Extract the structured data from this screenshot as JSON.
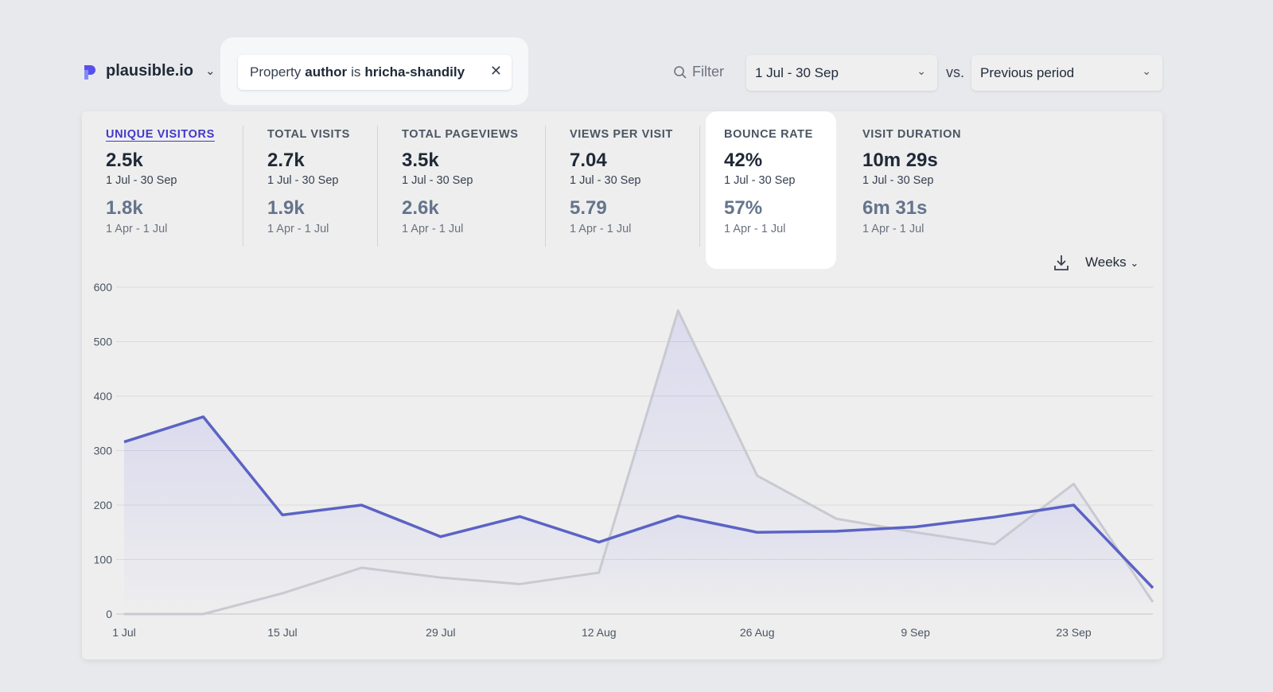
{
  "header": {
    "site": "plausible.io",
    "filter": {
      "prefix": "Property",
      "key": "author",
      "op": "is",
      "value": "hricha-shandily"
    },
    "filter_button": "Filter",
    "date_range": "1 Jul - 30 Sep",
    "vs": "vs.",
    "comparison": "Previous period"
  },
  "stats": [
    {
      "label": "UNIQUE VISITORS",
      "value": "2.5k",
      "period": "1 Jul - 30 Sep",
      "prev_value": "1.8k",
      "prev_period": "1 Apr - 1 Jul"
    },
    {
      "label": "TOTAL VISITS",
      "value": "2.7k",
      "period": "1 Jul - 30 Sep",
      "prev_value": "1.9k",
      "prev_period": "1 Apr - 1 Jul"
    },
    {
      "label": "TOTAL PAGEVIEWS",
      "value": "3.5k",
      "period": "1 Jul - 30 Sep",
      "prev_value": "2.6k",
      "prev_period": "1 Apr - 1 Jul"
    },
    {
      "label": "VIEWS PER VISIT",
      "value": "7.04",
      "period": "1 Jul - 30 Sep",
      "prev_value": "5.79",
      "prev_period": "1 Apr - 1 Jul"
    },
    {
      "label": "BOUNCE RATE",
      "value": "42%",
      "period": "1 Jul - 30 Sep",
      "prev_value": "57%",
      "prev_period": "1 Apr - 1 Jul"
    },
    {
      "label": "VISIT DURATION",
      "value": "10m 29s",
      "period": "1 Jul - 30 Sep",
      "prev_value": "6m 31s",
      "prev_period": "1 Apr - 1 Jul"
    }
  ],
  "chart_controls": {
    "interval": "Weeks"
  },
  "colors": {
    "current": "#5b63c4",
    "previous": "#c9c9d1",
    "accent": "#4338ca"
  },
  "chart_data": {
    "type": "line",
    "x": [
      "1 Jul",
      "8 Jul",
      "15 Jul",
      "22 Jul",
      "29 Jul",
      "5 Aug",
      "12 Aug",
      "19 Aug",
      "26 Aug",
      "2 Sep",
      "9 Sep",
      "16 Sep",
      "23 Sep",
      "30 Sep"
    ],
    "x_tick_labels": [
      "1 Jul",
      "15 Jul",
      "29 Jul",
      "12 Aug",
      "26 Aug",
      "9 Sep",
      "23 Sep"
    ],
    "y_ticks": [
      0,
      100,
      200,
      300,
      400,
      500,
      600
    ],
    "ylim": [
      0,
      600
    ],
    "grid": true,
    "series": [
      {
        "values": [
          316,
          362,
          182,
          200,
          142,
          179,
          132,
          180,
          150,
          152,
          160,
          178,
          200,
          48
        ]
      },
      {
        "values": [
          0,
          0,
          38,
          85,
          67,
          55,
          76,
          557,
          254,
          175,
          150,
          128,
          239,
          22
        ]
      }
    ]
  }
}
